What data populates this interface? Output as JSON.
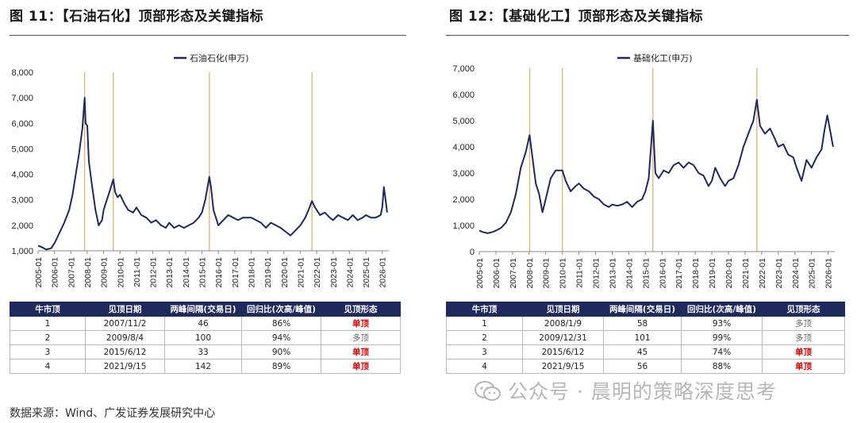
{
  "figures": [
    {
      "title": "图 11：【石油石化】顶部形态及关键指标",
      "table": {
        "headers": [
          "牛市顶",
          "见顶日期",
          "两峰间隔(交易日)",
          "回归比(次高/峰值)",
          "见顶形态"
        ],
        "rows": [
          [
            "1",
            "2007/11/2",
            "46",
            "86%",
            "单顶"
          ],
          [
            "2",
            "2009/8/4",
            "100",
            "94%",
            "多顶"
          ],
          [
            "3",
            "2015/6/12",
            "33",
            "90%",
            "单顶"
          ],
          [
            "4",
            "2021/9/15",
            "142",
            "89%",
            "单顶"
          ]
        ]
      }
    },
    {
      "title": "图 12：【基础化工】顶部形态及关键指标",
      "table": {
        "headers": [
          "牛市顶",
          "见顶日期",
          "两峰间隔(交易日)",
          "回归比(次高/峰值)",
          "见顶形态"
        ],
        "rows": [
          [
            "1",
            "2008/1/9",
            "58",
            "93%",
            "多顶"
          ],
          [
            "2",
            "2009/12/31",
            "101",
            "99%",
            "多顶"
          ],
          [
            "3",
            "2015/6/12",
            "45",
            "74%",
            "单顶"
          ],
          [
            "4",
            "2021/9/15",
            "56",
            "88%",
            "单顶"
          ]
        ]
      }
    }
  ],
  "chart_data": [
    {
      "type": "line",
      "series": [
        {
          "name": "石油石化(申万)",
          "x": [
            2005.0,
            2005.2,
            2005.5,
            2005.8,
            2006.0,
            2006.3,
            2006.6,
            2006.9,
            2007.1,
            2007.3,
            2007.5,
            2007.7,
            2007.84,
            2007.9,
            2008.0,
            2008.1,
            2008.3,
            2008.5,
            2008.7,
            2008.9,
            2009.0,
            2009.2,
            2009.4,
            2009.59,
            2009.7,
            2009.85,
            2010.0,
            2010.3,
            2010.5,
            2010.8,
            2011.0,
            2011.3,
            2011.6,
            2011.9,
            2012.2,
            2012.5,
            2012.8,
            2013.0,
            2013.3,
            2013.6,
            2013.9,
            2014.2,
            2014.5,
            2014.8,
            2015.0,
            2015.2,
            2015.45,
            2015.55,
            2015.7,
            2016.0,
            2016.3,
            2016.6,
            2016.9,
            2017.2,
            2017.5,
            2017.8,
            2018.0,
            2018.3,
            2018.6,
            2018.9,
            2019.2,
            2019.5,
            2019.8,
            2020.0,
            2020.2,
            2020.4,
            2020.7,
            2021.0,
            2021.3,
            2021.5,
            2021.71,
            2021.9,
            2022.2,
            2022.5,
            2022.8,
            2023.0,
            2023.3,
            2023.6,
            2023.9,
            2024.2,
            2024.5,
            2024.8,
            2025.0,
            2025.3,
            2025.6,
            2025.9,
            2026.0,
            2026.1,
            2026.2,
            2026.3
          ],
          "values": [
            1200,
            1150,
            1050,
            1100,
            1300,
            1700,
            2100,
            2600,
            3200,
            4000,
            4800,
            5800,
            7000,
            6000,
            5900,
            4500,
            3500,
            2600,
            2000,
            2200,
            2600,
            3000,
            3400,
            3800,
            3300,
            3100,
            3200,
            2800,
            2600,
            2500,
            2700,
            2400,
            2300,
            2100,
            2200,
            2000,
            1900,
            2100,
            1900,
            2000,
            1900,
            2000,
            2100,
            2300,
            2500,
            3000,
            3900,
            3500,
            2600,
            2000,
            2200,
            2400,
            2300,
            2200,
            2300,
            2300,
            2300,
            2200,
            2100,
            1900,
            2100,
            2000,
            1900,
            1800,
            1700,
            1600,
            1800,
            2000,
            2300,
            2600,
            2950,
            2700,
            2400,
            2500,
            2300,
            2200,
            2400,
            2300,
            2200,
            2400,
            2200,
            2300,
            2400,
            2300,
            2300,
            2400,
            2700,
            3500,
            3000,
            2500
          ]
        }
      ],
      "xlim": [
        2005,
        2026.4
      ],
      "ylim": [
        1000,
        8000
      ],
      "yticks": [
        "1,000",
        "2,000",
        "3,000",
        "4,000",
        "5,000",
        "6,000",
        "7,000",
        "8,000"
      ],
      "xticks": [
        "2005-01",
        "2006-01",
        "2007-01",
        "2008-01",
        "2009-01",
        "2010-01",
        "2011-01",
        "2012-01",
        "2013-01",
        "2014-01",
        "2015-01",
        "2016-01",
        "2017-01",
        "2018-01",
        "2019-01",
        "2020-01",
        "2021-01",
        "2022-01",
        "2023-01",
        "2024-01",
        "2025-01",
        "2026-01"
      ],
      "vlines": [
        2007.84,
        2009.59,
        2015.45,
        2021.71
      ],
      "legend": "top-center",
      "grid": false
    },
    {
      "type": "line",
      "series": [
        {
          "name": "基础化工(申万)",
          "x": [
            2005.0,
            2005.2,
            2005.5,
            2005.8,
            2006.0,
            2006.3,
            2006.6,
            2006.9,
            2007.2,
            2007.5,
            2007.8,
            2008.03,
            2008.2,
            2008.4,
            2008.6,
            2008.8,
            2009.0,
            2009.3,
            2009.6,
            2010.0,
            2010.2,
            2010.5,
            2010.8,
            2011.0,
            2011.3,
            2011.6,
            2011.9,
            2012.2,
            2012.5,
            2012.8,
            2013.0,
            2013.3,
            2013.6,
            2013.9,
            2014.2,
            2014.5,
            2014.8,
            2015.0,
            2015.2,
            2015.45,
            2015.6,
            2015.8,
            2016.1,
            2016.4,
            2016.7,
            2017.0,
            2017.3,
            2017.6,
            2017.9,
            2018.2,
            2018.5,
            2018.8,
            2019.0,
            2019.2,
            2019.5,
            2019.8,
            2020.0,
            2020.3,
            2020.6,
            2020.9,
            2021.2,
            2021.5,
            2021.71,
            2021.9,
            2022.2,
            2022.5,
            2022.8,
            2023.0,
            2023.3,
            2023.6,
            2023.9,
            2024.1,
            2024.4,
            2024.7,
            2025.0,
            2025.3,
            2025.6,
            2025.8,
            2025.95,
            2026.1,
            2026.3
          ],
          "values": [
            800,
            750,
            700,
            750,
            800,
            900,
            1100,
            1500,
            2200,
            3200,
            3800,
            4450,
            3600,
            2600,
            2200,
            1500,
            2000,
            2800,
            3100,
            3100,
            2700,
            2300,
            2500,
            2600,
            2400,
            2300,
            2100,
            2000,
            1800,
            1700,
            1800,
            1750,
            1800,
            1900,
            1700,
            1900,
            2000,
            2300,
            2800,
            5000,
            3000,
            2800,
            3100,
            3000,
            3300,
            3400,
            3200,
            3400,
            3300,
            3000,
            2900,
            2500,
            2700,
            3200,
            2800,
            2500,
            2700,
            2800,
            3300,
            4000,
            4500,
            5000,
            5800,
            4800,
            4500,
            4700,
            4300,
            4000,
            4100,
            3700,
            3600,
            3200,
            2700,
            3500,
            3200,
            3600,
            3900,
            4700,
            5200,
            4700,
            4000
          ]
        }
      ],
      "xlim": [
        2005,
        2026.4
      ],
      "ylim": [
        0,
        7000
      ],
      "yticks": [
        "0",
        "1,000",
        "2,000",
        "3,000",
        "4,000",
        "5,000",
        "6,000",
        "7,000"
      ],
      "xticks": [
        "2005-01",
        "2006-01",
        "2007-01",
        "2008-01",
        "2009-01",
        "2010-01",
        "2011-01",
        "2012-01",
        "2013-01",
        "2014-01",
        "2015-01",
        "2016-01",
        "2017-01",
        "2018-01",
        "2019-01",
        "2020-01",
        "2021-01",
        "2022-01",
        "2023-01",
        "2024-01",
        "2025-01",
        "2026-01"
      ],
      "vlines": [
        2008.03,
        2010.0,
        2015.45,
        2021.71
      ],
      "legend": "top-center",
      "grid": false
    }
  ],
  "source": "数据来源：Wind、广发证券发展研究中心",
  "watermark": "公众号 · 晨明的策略深度思考",
  "colors": {
    "line": "#1f2a5c",
    "vline": "#d9b47a",
    "header_bg": "#1f2a5c",
    "red": "#d40000"
  }
}
